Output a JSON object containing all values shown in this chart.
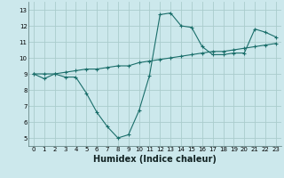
{
  "title": "",
  "xlabel": "Humidex (Indice chaleur)",
  "ylabel": "",
  "bg_color": "#cce8ec",
  "grid_color": "#aacccc",
  "line_color": "#1a6e6a",
  "xlim": [
    -0.5,
    23.5
  ],
  "ylim": [
    4.5,
    13.5
  ],
  "xticks": [
    0,
    1,
    2,
    3,
    4,
    5,
    6,
    7,
    8,
    9,
    10,
    11,
    12,
    13,
    14,
    15,
    16,
    17,
    18,
    19,
    20,
    21,
    22,
    23
  ],
  "yticks": [
    5,
    6,
    7,
    8,
    9,
    10,
    11,
    12,
    13
  ],
  "line1_x": [
    0,
    1,
    2,
    3,
    4,
    5,
    6,
    7,
    8,
    9,
    10,
    11,
    12,
    13,
    14,
    15,
    16,
    17,
    18,
    19,
    20,
    21,
    22,
    23
  ],
  "line1_y": [
    9.0,
    8.7,
    9.0,
    8.8,
    8.8,
    7.8,
    6.6,
    5.7,
    5.0,
    5.2,
    6.7,
    8.9,
    12.7,
    12.8,
    12.0,
    11.9,
    10.7,
    10.2,
    10.2,
    10.3,
    10.3,
    11.8,
    11.6,
    11.3
  ],
  "line2_x": [
    0,
    1,
    2,
    3,
    4,
    5,
    6,
    7,
    8,
    9,
    10,
    11,
    12,
    13,
    14,
    15,
    16,
    17,
    18,
    19,
    20,
    21,
    22,
    23
  ],
  "line2_y": [
    9.0,
    9.0,
    9.0,
    9.1,
    9.2,
    9.3,
    9.3,
    9.4,
    9.5,
    9.5,
    9.7,
    9.8,
    9.9,
    10.0,
    10.1,
    10.2,
    10.3,
    10.4,
    10.4,
    10.5,
    10.6,
    10.7,
    10.8,
    10.9
  ],
  "xlabel_fontsize": 7,
  "tick_fontsize": 5,
  "linewidth": 0.8,
  "markersize": 3
}
